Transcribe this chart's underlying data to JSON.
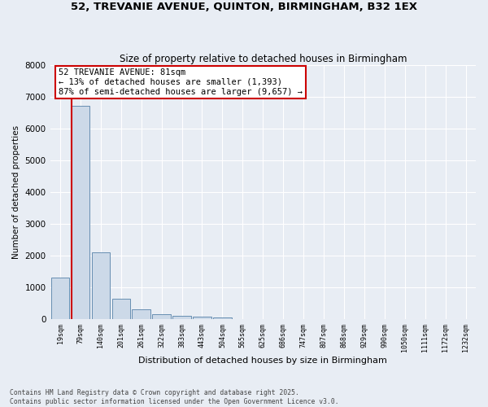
{
  "title": "52, TREVANIE AVENUE, QUINTON, BIRMINGHAM, B32 1EX",
  "subtitle": "Size of property relative to detached houses in Birmingham",
  "xlabel": "Distribution of detached houses by size in Birmingham",
  "ylabel": "Number of detached properties",
  "categories": [
    "19sqm",
    "79sqm",
    "140sqm",
    "201sqm",
    "261sqm",
    "322sqm",
    "383sqm",
    "443sqm",
    "504sqm",
    "565sqm",
    "625sqm",
    "686sqm",
    "747sqm",
    "807sqm",
    "868sqm",
    "929sqm",
    "990sqm",
    "1050sqm",
    "1111sqm",
    "1172sqm",
    "1232sqm"
  ],
  "values": [
    1300,
    6700,
    2100,
    650,
    300,
    150,
    100,
    70,
    50,
    10,
    5,
    2,
    1,
    1,
    0,
    0,
    0,
    0,
    0,
    0,
    0
  ],
  "bar_color": "#ccd9e8",
  "bar_edge_color": "#5580a8",
  "background_color": "#e8edf4",
  "grid_color": "#ffffff",
  "annotation_text": "52 TREVANIE AVENUE: 81sqm\n← 13% of detached houses are smaller (1,393)\n87% of semi-detached houses are larger (9,657) →",
  "annotation_box_color": "#ffffff",
  "annotation_box_edge_color": "#cc0000",
  "property_line_color": "#cc0000",
  "footer": "Contains HM Land Registry data © Crown copyright and database right 2025.\nContains public sector information licensed under the Open Government Licence v3.0.",
  "ylim": [
    0,
    8000
  ],
  "yticks": [
    0,
    1000,
    2000,
    3000,
    4000,
    5000,
    6000,
    7000,
    8000
  ]
}
